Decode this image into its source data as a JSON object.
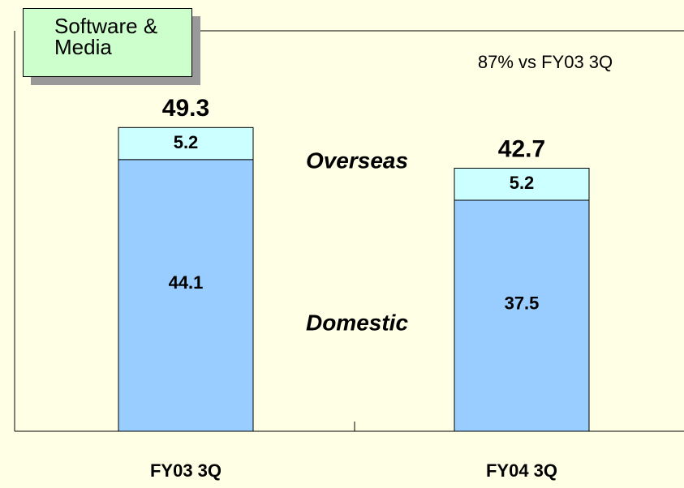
{
  "chart_data": {
    "type": "stacked_bar",
    "title": "Software & Media",
    "annotation": "87% vs FY03 3Q",
    "categories": [
      "FY03 3Q",
      "FY04 3Q"
    ],
    "series": [
      {
        "name": "Domestic",
        "color": "#99ccff",
        "values": [
          44.1,
          37.5
        ]
      },
      {
        "name": "Overseas",
        "color": "#ccffff",
        "values": [
          5.2,
          5.2
        ]
      }
    ],
    "totals": [
      49.3,
      42.7
    ],
    "ylim": [
      0,
      65
    ]
  }
}
